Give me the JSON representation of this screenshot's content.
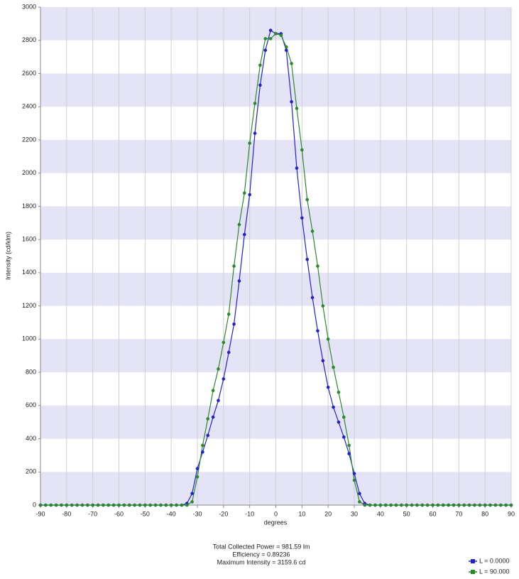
{
  "chart_data": {
    "type": "line",
    "xlabel": "degrees",
    "ylabel": "Intensity (cd/klm)",
    "annotations": [
      "Total Collected Power = 981.59  lm",
      "Efficiency = 0.89236",
      "Maximum Intensity = 3159.6  cd"
    ],
    "x": [
      -90,
      -88,
      -86,
      -84,
      -82,
      -80,
      -78,
      -76,
      -74,
      -72,
      -70,
      -68,
      -66,
      -64,
      -62,
      -60,
      -58,
      -56,
      -54,
      -52,
      -50,
      -48,
      -46,
      -44,
      -42,
      -40,
      -38,
      -36,
      -34,
      -32,
      -30,
      -28,
      -26,
      -24,
      -22,
      -20,
      -18,
      -16,
      -14,
      -12,
      -10,
      -8,
      -6,
      -4,
      -2,
      0,
      2,
      4,
      6,
      8,
      10,
      12,
      14,
      16,
      18,
      20,
      22,
      24,
      26,
      28,
      30,
      32,
      34,
      36,
      38,
      40,
      42,
      44,
      46,
      48,
      50,
      52,
      54,
      56,
      58,
      60,
      62,
      64,
      66,
      68,
      70,
      72,
      74,
      76,
      78,
      80,
      82,
      84,
      86,
      88,
      90
    ],
    "series": [
      {
        "name": "L = 0.0000",
        "color": "#2222cc",
        "values": [
          0,
          0,
          0,
          0,
          0,
          0,
          0,
          0,
          0,
          0,
          0,
          0,
          0,
          0,
          0,
          0,
          0,
          0,
          0,
          0,
          0,
          0,
          0,
          0,
          0,
          0,
          0,
          0,
          10,
          70,
          220,
          320,
          420,
          530,
          630,
          760,
          920,
          1090,
          1350,
          1630,
          1870,
          2240,
          2530,
          2740,
          2860,
          2840,
          2840,
          2740,
          2430,
          2030,
          1730,
          1480,
          1250,
          1050,
          870,
          710,
          590,
          500,
          410,
          310,
          190,
          70,
          10,
          0,
          0,
          0,
          0,
          0,
          0,
          0,
          0,
          0,
          0,
          0,
          0,
          0,
          0,
          0,
          0,
          0,
          0,
          0,
          0,
          0,
          0,
          0,
          0,
          0,
          0,
          0,
          0
        ]
      },
      {
        "name": "L = 90.000",
        "color": "#2a8a2a",
        "values": [
          0,
          0,
          0,
          0,
          0,
          0,
          0,
          0,
          0,
          0,
          0,
          0,
          0,
          0,
          0,
          0,
          0,
          0,
          0,
          0,
          0,
          0,
          0,
          0,
          0,
          0,
          0,
          0,
          0,
          20,
          170,
          360,
          520,
          690,
          820,
          980,
          1150,
          1440,
          1690,
          1880,
          2180,
          2420,
          2650,
          2810,
          2810,
          2840,
          2830,
          2760,
          2660,
          2390,
          2140,
          1840,
          1650,
          1440,
          1200,
          1000,
          830,
          680,
          530,
          360,
          150,
          20,
          0,
          0,
          0,
          0,
          0,
          0,
          0,
          0,
          0,
          0,
          0,
          0,
          0,
          0,
          0,
          0,
          0,
          0,
          0,
          0,
          0,
          0,
          0,
          0,
          0,
          0,
          0,
          0,
          0
        ]
      }
    ],
    "xlim": [
      -90,
      90
    ],
    "ylim": [
      0,
      3000
    ],
    "xticks": [
      -90,
      -80,
      -70,
      -60,
      -50,
      -40,
      -30,
      -20,
      -10,
      0,
      10,
      20,
      30,
      40,
      50,
      60,
      70,
      80,
      90
    ],
    "yticks": [
      0,
      200,
      400,
      600,
      800,
      1000,
      1200,
      1400,
      1600,
      1800,
      2000,
      2200,
      2400,
      2600,
      2800,
      3000
    ],
    "band_color": "#e4e4f6",
    "grid": true,
    "legend": "lower right"
  }
}
